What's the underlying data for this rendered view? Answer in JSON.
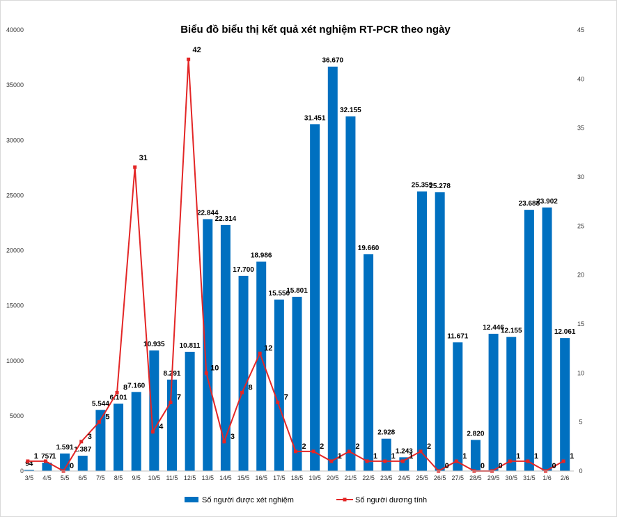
{
  "chart_data": {
    "type": "bar",
    "title": "Biểu đồ biểu thị kết quả xét nghiệm RT-PCR theo ngày",
    "categories": [
      "3/5",
      "4/5",
      "5/5",
      "6/5",
      "7/5",
      "8/5",
      "9/5",
      "10/5",
      "11/5",
      "12/5",
      "13/5",
      "14/5",
      "15/5",
      "16/5",
      "17/5",
      "18/5",
      "19/5",
      "20/5",
      "21/5",
      "22/5",
      "23/5",
      "24/5",
      "25/5",
      "26/5",
      "27/5",
      "28/5",
      "29/5",
      "30/5",
      "31/5",
      "1/6",
      "2/6"
    ],
    "series": [
      {
        "name": "Số người được xét nghiệm",
        "type": "bar",
        "axis": "left",
        "color": "#0070C0",
        "values": [
          94,
          757,
          1591,
          1387,
          5544,
          6101,
          7160,
          10935,
          8291,
          10811,
          22844,
          22314,
          17700,
          18986,
          15550,
          15801,
          31451,
          36670,
          32155,
          19660,
          2928,
          1243,
          25359,
          25278,
          11671,
          2820,
          12446,
          12155,
          23688,
          23902,
          12061
        ],
        "labels": [
          "94",
          "757",
          "1.591",
          "1.387",
          "5.544",
          "6.101",
          "7.160",
          "10.935",
          "8.291",
          "10.811",
          "22.844",
          "22.314",
          "17.700",
          "18.986",
          "15.550",
          "15.801",
          "31.451",
          "36.670",
          "32.155",
          "19.660",
          "2.928",
          "1.243",
          "25.359",
          "25.278",
          "11.671",
          "2.820",
          "12.446",
          "12.155",
          "23.688",
          "23.902",
          "12.061"
        ]
      },
      {
        "name": "Số người dương tính",
        "type": "line",
        "axis": "right",
        "color": "#E32626",
        "values": [
          1,
          1,
          0,
          3,
          5,
          8,
          31,
          4,
          7,
          42,
          10,
          3,
          8,
          12,
          7,
          2,
          2,
          1,
          2,
          1,
          1,
          1,
          2,
          0,
          1,
          0,
          0,
          1,
          1,
          0,
          1
        ],
        "labels": [
          "1",
          "1",
          "0",
          "3",
          "5",
          "8",
          "31",
          "4",
          "7",
          "42",
          "10",
          "3",
          "8",
          "12",
          "7",
          "2",
          "2",
          "1",
          "2",
          "1",
          "1",
          "1",
          "2",
          "0",
          "1",
          "0",
          "0",
          "1",
          "1",
          "0",
          "1"
        ]
      }
    ],
    "y_left": {
      "min": 0,
      "max": 40000,
      "ticks": [
        0,
        5000,
        10000,
        15000,
        20000,
        25000,
        30000,
        35000,
        40000
      ]
    },
    "y_right": {
      "min": 0,
      "max": 45,
      "ticks": [
        0,
        5,
        10,
        15,
        20,
        25,
        30,
        35,
        40,
        45
      ]
    },
    "grid": false,
    "legend_position": "bottom"
  }
}
